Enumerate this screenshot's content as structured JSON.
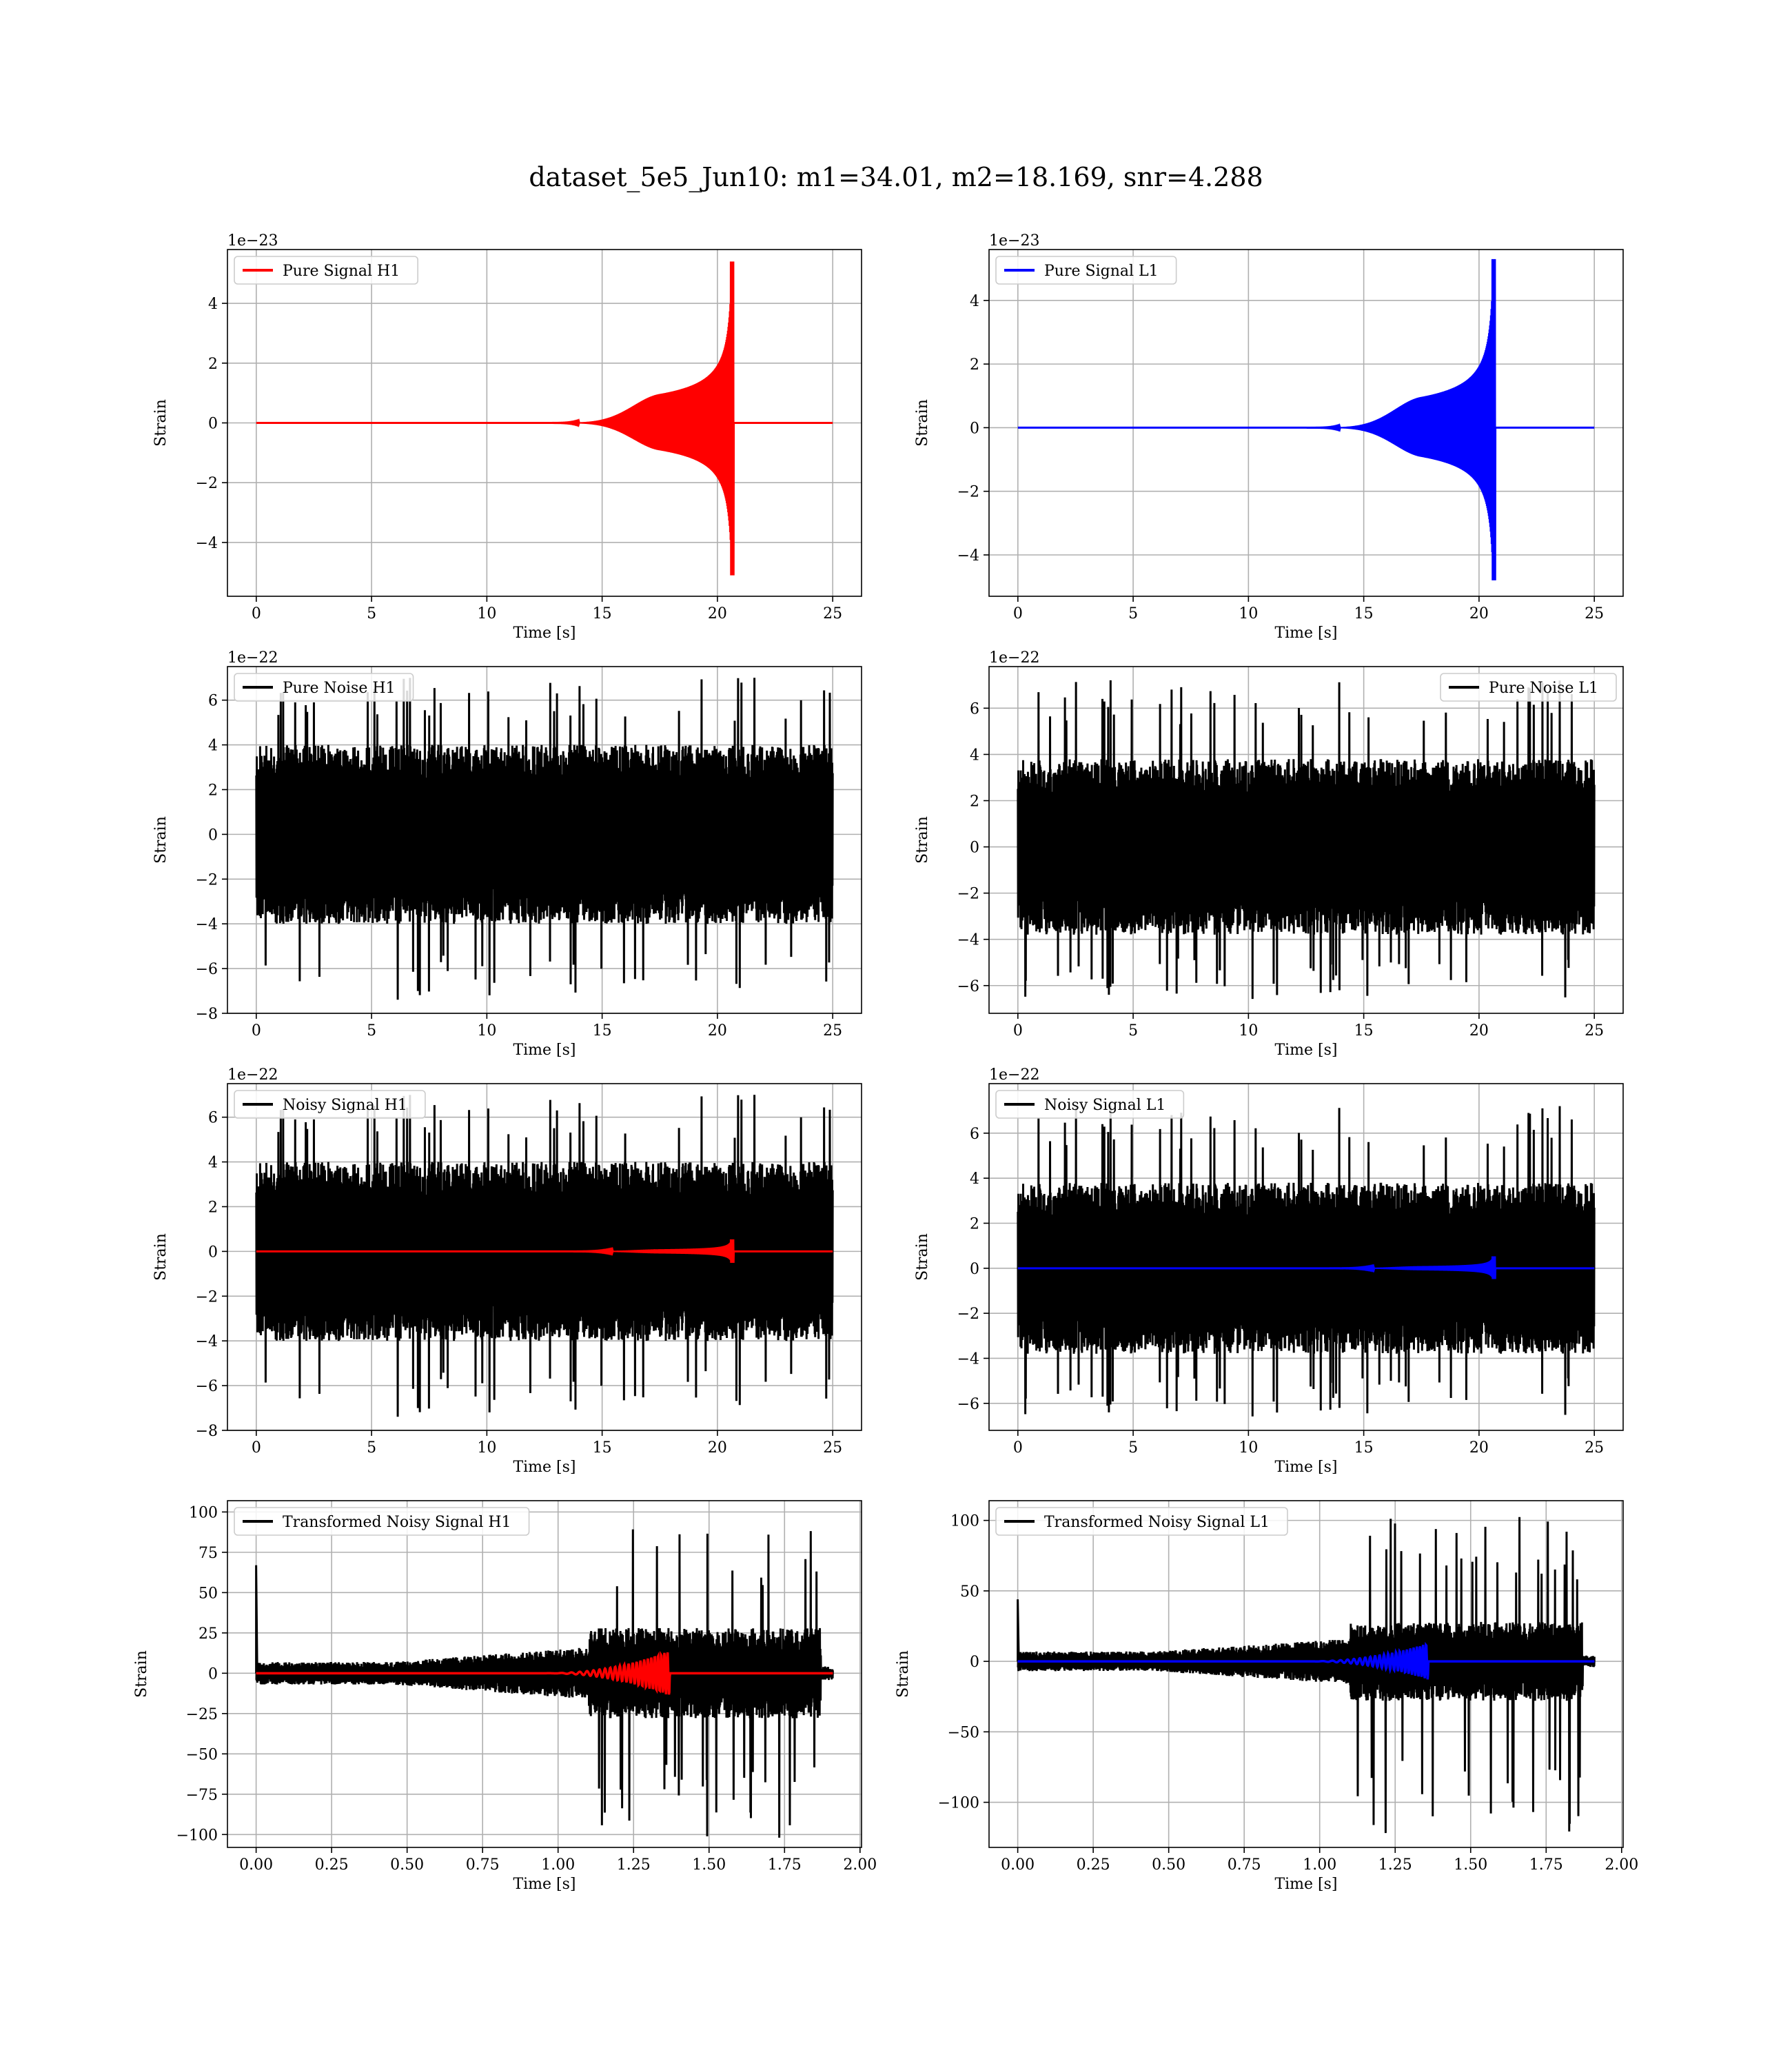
{
  "figure_title": "dataset_5e5_Jun10: m1=34.01, m2=18.169, snr=4.288",
  "chart_data": [
    {
      "type": "line",
      "legend": "Pure Signal H1",
      "legend_loc": "upper-left",
      "xlabel": "Time [s]",
      "ylabel": "Strain",
      "offset_text": "1e−23",
      "xlim": [
        -1.25,
        26.25
      ],
      "ylim": [
        -5.8,
        5.8
      ],
      "xticks": [
        0,
        5,
        10,
        15,
        20,
        25
      ],
      "yticks": [
        -4,
        -2,
        0,
        2,
        4
      ],
      "series": [
        {
          "color": "#ff0000",
          "kind": "chirp",
          "x_start": 0,
          "x_end": 25,
          "merger_x": 20.7,
          "peak_pos": 5.4,
          "peak_neg": -5.1,
          "plateau": 1.5,
          "onset_x": 15.0
        }
      ]
    },
    {
      "type": "line",
      "legend": "Pure Signal L1",
      "legend_loc": "upper-left",
      "xlabel": "Time [s]",
      "ylabel": "Strain",
      "offset_text": "1e−23",
      "xlim": [
        -1.25,
        26.25
      ],
      "ylim": [
        -5.3,
        5.6
      ],
      "xticks": [
        0,
        5,
        10,
        15,
        20,
        25
      ],
      "yticks": [
        -4,
        -2,
        0,
        2,
        4
      ],
      "series": [
        {
          "color": "#0000ff",
          "kind": "chirp",
          "x_start": 0,
          "x_end": 25,
          "merger_x": 20.7,
          "peak_pos": 5.3,
          "peak_neg": -4.8,
          "plateau": 1.5,
          "onset_x": 15.0
        }
      ]
    },
    {
      "type": "line",
      "legend": "Pure Noise H1",
      "legend_loc": "upper-left",
      "xlabel": "Time [s]",
      "ylabel": "Strain",
      "offset_text": "1e−22",
      "xlim": [
        -1.25,
        26.25
      ],
      "ylim": [
        -8.0,
        7.5
      ],
      "xticks": [
        0,
        5,
        10,
        15,
        20,
        25
      ],
      "yticks": [
        -8,
        -6,
        -4,
        -2,
        0,
        2,
        4,
        6
      ],
      "series": [
        {
          "color": "#000000",
          "kind": "noise",
          "x_start": 0,
          "x_end": 25,
          "band": 4.0,
          "spike_max": 7.0,
          "spike_min": -7.4,
          "seed": 11
        }
      ]
    },
    {
      "type": "line",
      "legend": "Pure Noise L1",
      "legend_loc": "upper-right",
      "xlabel": "Time [s]",
      "ylabel": "Strain",
      "offset_text": "1e−22",
      "xlim": [
        -1.25,
        26.25
      ],
      "ylim": [
        -7.2,
        7.8
      ],
      "xticks": [
        0,
        5,
        10,
        15,
        20,
        25
      ],
      "yticks": [
        -6,
        -4,
        -2,
        0,
        2,
        4,
        6
      ],
      "series": [
        {
          "color": "#000000",
          "kind": "noise",
          "x_start": 0,
          "x_end": 25,
          "band": 3.8,
          "spike_max": 7.3,
          "spike_min": -6.6,
          "seed": 23
        }
      ]
    },
    {
      "type": "line",
      "legend": "Noisy Signal H1",
      "legend_loc": "upper-left",
      "xlabel": "Time [s]",
      "ylabel": "Strain",
      "offset_text": "1e−22",
      "xlim": [
        -1.25,
        26.25
      ],
      "ylim": [
        -8.0,
        7.5
      ],
      "xticks": [
        0,
        5,
        10,
        15,
        20,
        25
      ],
      "yticks": [
        -8,
        -6,
        -4,
        -2,
        0,
        2,
        4,
        6
      ],
      "series": [
        {
          "color": "#000000",
          "kind": "noise",
          "x_start": 0,
          "x_end": 25,
          "band": 4.0,
          "spike_max": 7.0,
          "spike_min": -7.4,
          "seed": 11
        },
        {
          "color": "#ff0000",
          "kind": "chirp",
          "x_start": 0,
          "x_end": 25,
          "merger_x": 20.7,
          "peak_pos": 0.54,
          "peak_neg": -0.51,
          "plateau": 0.15,
          "onset_x": 15.0
        }
      ]
    },
    {
      "type": "line",
      "legend": "Noisy Signal L1",
      "legend_loc": "upper-left",
      "xlabel": "Time [s]",
      "ylabel": "Strain",
      "offset_text": "1e−22",
      "xlim": [
        -1.25,
        26.25
      ],
      "ylim": [
        -7.2,
        8.2
      ],
      "xticks": [
        0,
        5,
        10,
        15,
        20,
        25
      ],
      "yticks": [
        -6,
        -4,
        -2,
        0,
        2,
        4,
        6
      ],
      "series": [
        {
          "color": "#000000",
          "kind": "noise",
          "x_start": 0,
          "x_end": 25,
          "band": 3.8,
          "spike_max": 7.3,
          "spike_min": -6.6,
          "seed": 23
        },
        {
          "color": "#0000ff",
          "kind": "chirp",
          "x_start": 0,
          "x_end": 25,
          "merger_x": 20.7,
          "peak_pos": 0.53,
          "peak_neg": -0.48,
          "plateau": 0.15,
          "onset_x": 15.0
        }
      ]
    },
    {
      "type": "line",
      "legend": "Transformed Noisy Signal H1",
      "legend_loc": "upper-left",
      "xlabel": "Time [s]",
      "ylabel": "Strain",
      "offset_text": "",
      "xlim": [
        -0.095,
        2.005
      ],
      "ylim": [
        -108,
        107
      ],
      "xticks": [
        0.0,
        0.25,
        0.5,
        0.75,
        1.0,
        1.25,
        1.5,
        1.75,
        2.0
      ],
      "xtick_labels": [
        "0.00",
        "0.25",
        "0.50",
        "0.75",
        "1.00",
        "1.25",
        "1.50",
        "1.75",
        "2.00"
      ],
      "yticks": [
        -100,
        -75,
        -50,
        -25,
        0,
        25,
        50,
        75,
        100
      ],
      "series": [
        {
          "color": "#000000",
          "kind": "transformed",
          "x_start": 0,
          "x_end": 1.91,
          "initial_spike": 67,
          "spike_min": -103,
          "spike_max": 93,
          "seed": 5
        },
        {
          "color": "#ff0000",
          "kind": "osc",
          "x_start": 0,
          "x_end": 1.91,
          "merger_x": 1.37,
          "peak": 14,
          "onset_x": 0.95
        }
      ]
    },
    {
      "type": "line",
      "legend": "Transformed Noisy Signal L1",
      "legend_loc": "upper-left",
      "xlabel": "Time [s]",
      "ylabel": "Strain",
      "offset_text": "",
      "xlim": [
        -0.095,
        2.005
      ],
      "ylim": [
        -132,
        114
      ],
      "xticks": [
        0.0,
        0.25,
        0.5,
        0.75,
        1.0,
        1.25,
        1.5,
        1.75,
        2.0
      ],
      "xtick_labels": [
        "0.00",
        "0.25",
        "0.50",
        "0.75",
        "1.00",
        "1.25",
        "1.50",
        "1.75",
        "2.00"
      ],
      "yticks": [
        -100,
        -50,
        0,
        50,
        100
      ],
      "series": [
        {
          "color": "#000000",
          "kind": "transformed",
          "x_start": 0,
          "x_end": 1.91,
          "initial_spike": 44,
          "spike_min": -122,
          "spike_max": 104,
          "seed": 9
        },
        {
          "color": "#0000ff",
          "kind": "osc",
          "x_start": 0,
          "x_end": 1.91,
          "merger_x": 1.36,
          "peak": 13,
          "onset_x": 0.95
        }
      ]
    }
  ]
}
